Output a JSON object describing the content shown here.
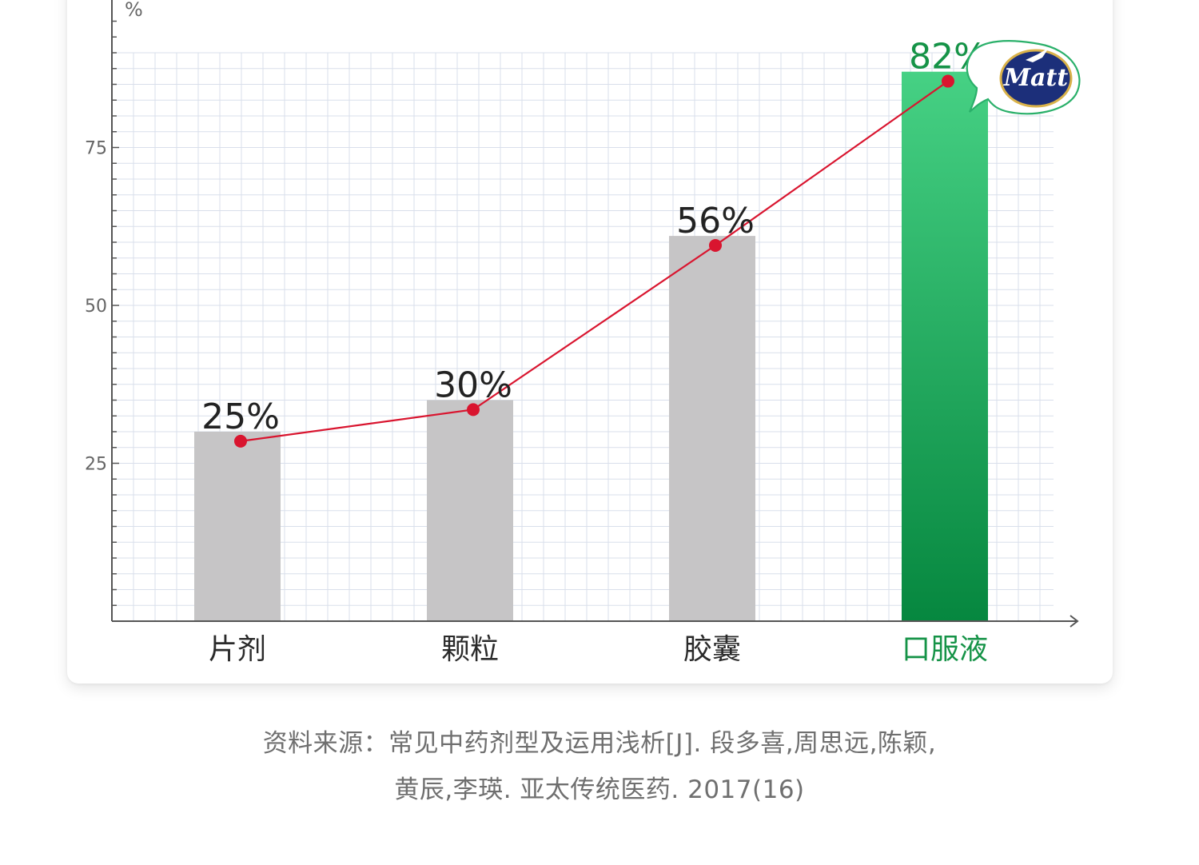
{
  "chart_data": {
    "type": "bar",
    "ylabel": "%",
    "ylim": [
      0,
      90
    ],
    "yticks": [
      25,
      50,
      75
    ],
    "grid": true,
    "categories": [
      "片剂",
      "颗粒",
      "胶囊",
      "口服液"
    ],
    "values": [
      25,
      30,
      56,
      82
    ],
    "data_labels": [
      "25%",
      "30%",
      "56%",
      "82%"
    ],
    "line_overlay": true,
    "highlight_index": 3,
    "colors": {
      "bar": "#c6c5c6",
      "highlight_top": "#46d184",
      "highlight_bottom": "#06873f",
      "highlight_text": "#159347",
      "line": "#d9152f",
      "grid": "#d9dfeb",
      "axis": "#555555"
    }
  },
  "badge": {
    "text": "Matt"
  },
  "source": {
    "line1": "资料来源：常见中药剂型及运用浅析[J]. 段多喜,周思远,陈颖,",
    "line2": "黄辰,李瑛.  亚太传统医药. 2017(16)"
  }
}
